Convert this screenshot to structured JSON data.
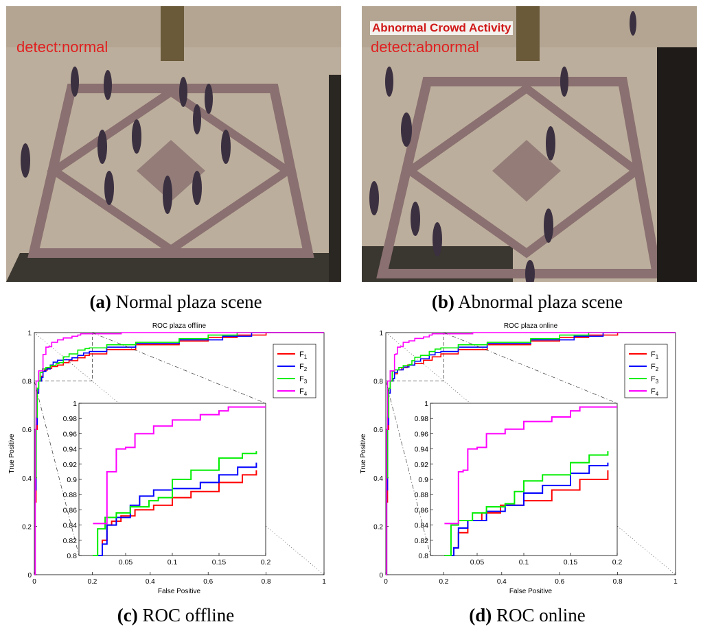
{
  "panels": [
    {
      "id": "a",
      "caption_letter": "(a)",
      "caption_text": " Normal plaza scene",
      "overlay_lines": [
        "detect:normal"
      ],
      "overlay_color": "#e02020"
    },
    {
      "id": "b",
      "caption_letter": "(b)",
      "caption_text": " Abnormal plaza scene",
      "overlay_banner": "Abnormal Crowd Activity",
      "overlay_lines": [
        "detect:abnormal"
      ],
      "overlay_color": "#e02020"
    }
  ],
  "captions": {
    "c_letter": "(c)",
    "c_text": " ROC offline",
    "d_letter": "(d)",
    "d_text": " ROC online"
  },
  "chart_data": [
    {
      "type": "line",
      "title": "ROC plaza offline",
      "xlabel": "False Positive",
      "ylabel": "True Positive",
      "xlim": [
        0,
        1
      ],
      "ylim": [
        0,
        1
      ],
      "xticks": [
        "0",
        "0.2",
        "0.4",
        "0.6",
        "0.8",
        "1"
      ],
      "yticks": [
        "0",
        "0.2",
        "0.4",
        "0.6",
        "0.8",
        "1"
      ],
      "legend_position": "top-right",
      "zoom_region": {
        "x": [
          0,
          0.2
        ],
        "y": [
          0.8,
          1
        ]
      },
      "inset": {
        "xlim": [
          0,
          0.2
        ],
        "ylim": [
          0.8,
          1
        ],
        "xticks": [
          "0.05",
          "0.1",
          "0.15",
          "0.2"
        ],
        "yticks": [
          "0.8",
          "0.82",
          "0.84",
          "0.86",
          "0.88",
          "0.9",
          "0.92",
          "0.94",
          "0.96",
          "0.98",
          "1"
        ]
      },
      "series": [
        {
          "name": "F1",
          "sub": "1",
          "color": "#ff0000",
          "points": [
            [
              0,
              0
            ],
            [
              0.003,
              0.3
            ],
            [
              0.006,
              0.6
            ],
            [
              0.01,
              0.75
            ],
            [
              0.015,
              0.8
            ],
            [
              0.02,
              0.8
            ],
            [
              0.025,
              0.82
            ],
            [
              0.03,
              0.84
            ],
            [
              0.035,
              0.845
            ],
            [
              0.045,
              0.852
            ],
            [
              0.06,
              0.86
            ],
            [
              0.08,
              0.866
            ],
            [
              0.1,
              0.876
            ],
            [
              0.12,
              0.884
            ],
            [
              0.15,
              0.896
            ],
            [
              0.175,
              0.906
            ],
            [
              0.19,
              0.912
            ],
            [
              0.25,
              0.93
            ],
            [
              0.35,
              0.95
            ],
            [
              0.5,
              0.965
            ],
            [
              0.6,
              0.98
            ],
            [
              0.7,
              0.99
            ],
            [
              0.8,
              1
            ],
            [
              1,
              1
            ]
          ]
        },
        {
          "name": "F2",
          "sub": "2",
          "color": "#0000ff",
          "points": [
            [
              0,
              0
            ],
            [
              0.003,
              0.35
            ],
            [
              0.006,
              0.62
            ],
            [
              0.01,
              0.75
            ],
            [
              0.015,
              0.8
            ],
            [
              0.025,
              0.815
            ],
            [
              0.03,
              0.84
            ],
            [
              0.04,
              0.85
            ],
            [
              0.055,
              0.866
            ],
            [
              0.065,
              0.878
            ],
            [
              0.08,
              0.886
            ],
            [
              0.1,
              0.888
            ],
            [
              0.13,
              0.896
            ],
            [
              0.15,
              0.906
            ],
            [
              0.17,
              0.916
            ],
            [
              0.19,
              0.922
            ],
            [
              0.25,
              0.94
            ],
            [
              0.35,
              0.955
            ],
            [
              0.5,
              0.97
            ],
            [
              0.65,
              0.985
            ],
            [
              0.75,
              1
            ],
            [
              1,
              1
            ]
          ]
        },
        {
          "name": "F3",
          "sub": "3",
          "color": "#00ee00",
          "points": [
            [
              0,
              0
            ],
            [
              0.003,
              0.4
            ],
            [
              0.006,
              0.65
            ],
            [
              0.01,
              0.77
            ],
            [
              0.015,
              0.8
            ],
            [
              0.02,
              0.835
            ],
            [
              0.028,
              0.85
            ],
            [
              0.04,
              0.856
            ],
            [
              0.055,
              0.864
            ],
            [
              0.075,
              0.872
            ],
            [
              0.085,
              0.876
            ],
            [
              0.1,
              0.9
            ],
            [
              0.12,
              0.912
            ],
            [
              0.15,
              0.928
            ],
            [
              0.175,
              0.934
            ],
            [
              0.19,
              0.937
            ],
            [
              0.25,
              0.95
            ],
            [
              0.35,
              0.96
            ],
            [
              0.5,
              0.975
            ],
            [
              0.6,
              0.99
            ],
            [
              0.7,
              1
            ],
            [
              1,
              1
            ]
          ]
        },
        {
          "name": "F4",
          "sub": "4",
          "color": "#ff00ff",
          "points": [
            [
              0,
              0
            ],
            [
              0.003,
              0.6
            ],
            [
              0.006,
              0.8
            ],
            [
              0.008,
              0.8
            ],
            [
              0.015,
              0.842
            ],
            [
              0.025,
              0.842
            ],
            [
              0.03,
              0.91
            ],
            [
              0.035,
              0.91
            ],
            [
              0.04,
              0.94
            ],
            [
              0.05,
              0.942
            ],
            [
              0.06,
              0.96
            ],
            [
              0.08,
              0.97
            ],
            [
              0.1,
              0.978
            ],
            [
              0.13,
              0.985
            ],
            [
              0.15,
              0.99
            ],
            [
              0.16,
              0.995
            ],
            [
              0.2,
              0.995
            ],
            [
              0.3,
              1
            ],
            [
              1,
              1
            ]
          ]
        }
      ]
    },
    {
      "type": "line",
      "title": "ROC plaza online",
      "xlabel": "False Positive",
      "ylabel": "True Positive",
      "xlim": [
        0,
        1
      ],
      "ylim": [
        0,
        1
      ],
      "xticks": [
        "0",
        "0.2",
        "0.4",
        "0.6",
        "0.8",
        "1"
      ],
      "yticks": [
        "0",
        "0.2",
        "0.4",
        "0.6",
        "0.8",
        "1"
      ],
      "legend_position": "top-right",
      "zoom_region": {
        "x": [
          0,
          0.2
        ],
        "y": [
          0.8,
          1
        ]
      },
      "inset": {
        "xlim": [
          0,
          0.2
        ],
        "ylim": [
          0.8,
          1
        ],
        "xticks": [
          "0.05",
          "0.1",
          "0.15",
          "0.2"
        ],
        "yticks": [
          "0.8",
          "0.82",
          "0.84",
          "0.86",
          "0.88",
          "0.9",
          "0.92",
          "0.94",
          "0.96",
          "0.98",
          "1"
        ]
      },
      "series": [
        {
          "name": "F1",
          "sub": "1",
          "color": "#ff0000",
          "points": [
            [
              0,
              0
            ],
            [
              0.003,
              0.3
            ],
            [
              0.006,
              0.6
            ],
            [
              0.01,
              0.75
            ],
            [
              0.015,
              0.8
            ],
            [
              0.025,
              0.81
            ],
            [
              0.03,
              0.83
            ],
            [
              0.04,
              0.846
            ],
            [
              0.055,
              0.856
            ],
            [
              0.075,
              0.866
            ],
            [
              0.1,
              0.872
            ],
            [
              0.13,
              0.886
            ],
            [
              0.16,
              0.9
            ],
            [
              0.19,
              0.912
            ],
            [
              0.25,
              0.93
            ],
            [
              0.35,
              0.95
            ],
            [
              0.5,
              0.965
            ],
            [
              0.6,
              0.98
            ],
            [
              0.7,
              0.99
            ],
            [
              0.8,
              1
            ],
            [
              1,
              1
            ]
          ]
        },
        {
          "name": "F2",
          "sub": "2",
          "color": "#0000ff",
          "points": [
            [
              0,
              0
            ],
            [
              0.003,
              0.35
            ],
            [
              0.006,
              0.62
            ],
            [
              0.01,
              0.75
            ],
            [
              0.015,
              0.8
            ],
            [
              0.025,
              0.81
            ],
            [
              0.03,
              0.836
            ],
            [
              0.04,
              0.846
            ],
            [
              0.06,
              0.858
            ],
            [
              0.08,
              0.866
            ],
            [
              0.1,
              0.882
            ],
            [
              0.12,
              0.892
            ],
            [
              0.15,
              0.908
            ],
            [
              0.17,
              0.918
            ],
            [
              0.19,
              0.922
            ],
            [
              0.25,
              0.94
            ],
            [
              0.35,
              0.955
            ],
            [
              0.5,
              0.97
            ],
            [
              0.65,
              0.985
            ],
            [
              0.75,
              1
            ],
            [
              1,
              1
            ]
          ]
        },
        {
          "name": "F3",
          "sub": "3",
          "color": "#00ee00",
          "points": [
            [
              0,
              0
            ],
            [
              0.003,
              0.4
            ],
            [
              0.006,
              0.65
            ],
            [
              0.01,
              0.77
            ],
            [
              0.015,
              0.8
            ],
            [
              0.022,
              0.84
            ],
            [
              0.03,
              0.846
            ],
            [
              0.045,
              0.856
            ],
            [
              0.06,
              0.864
            ],
            [
              0.08,
              0.868
            ],
            [
              0.09,
              0.884
            ],
            [
              0.1,
              0.898
            ],
            [
              0.12,
              0.906
            ],
            [
              0.15,
              0.922
            ],
            [
              0.17,
              0.932
            ],
            [
              0.19,
              0.937
            ],
            [
              0.25,
              0.95
            ],
            [
              0.35,
              0.96
            ],
            [
              0.5,
              0.975
            ],
            [
              0.6,
              0.99
            ],
            [
              0.7,
              1
            ],
            [
              1,
              1
            ]
          ]
        },
        {
          "name": "F4",
          "sub": "4",
          "color": "#ff00ff",
          "points": [
            [
              0,
              0
            ],
            [
              0.003,
              0.6
            ],
            [
              0.006,
              0.8
            ],
            [
              0.008,
              0.8
            ],
            [
              0.015,
              0.842
            ],
            [
              0.025,
              0.842
            ],
            [
              0.03,
              0.91
            ],
            [
              0.035,
              0.912
            ],
            [
              0.04,
              0.94
            ],
            [
              0.05,
              0.942
            ],
            [
              0.06,
              0.96
            ],
            [
              0.08,
              0.966
            ],
            [
              0.1,
              0.976
            ],
            [
              0.13,
              0.982
            ],
            [
              0.15,
              0.99
            ],
            [
              0.16,
              0.995
            ],
            [
              0.2,
              0.995
            ],
            [
              0.3,
              1
            ],
            [
              1,
              1
            ]
          ]
        }
      ]
    }
  ]
}
